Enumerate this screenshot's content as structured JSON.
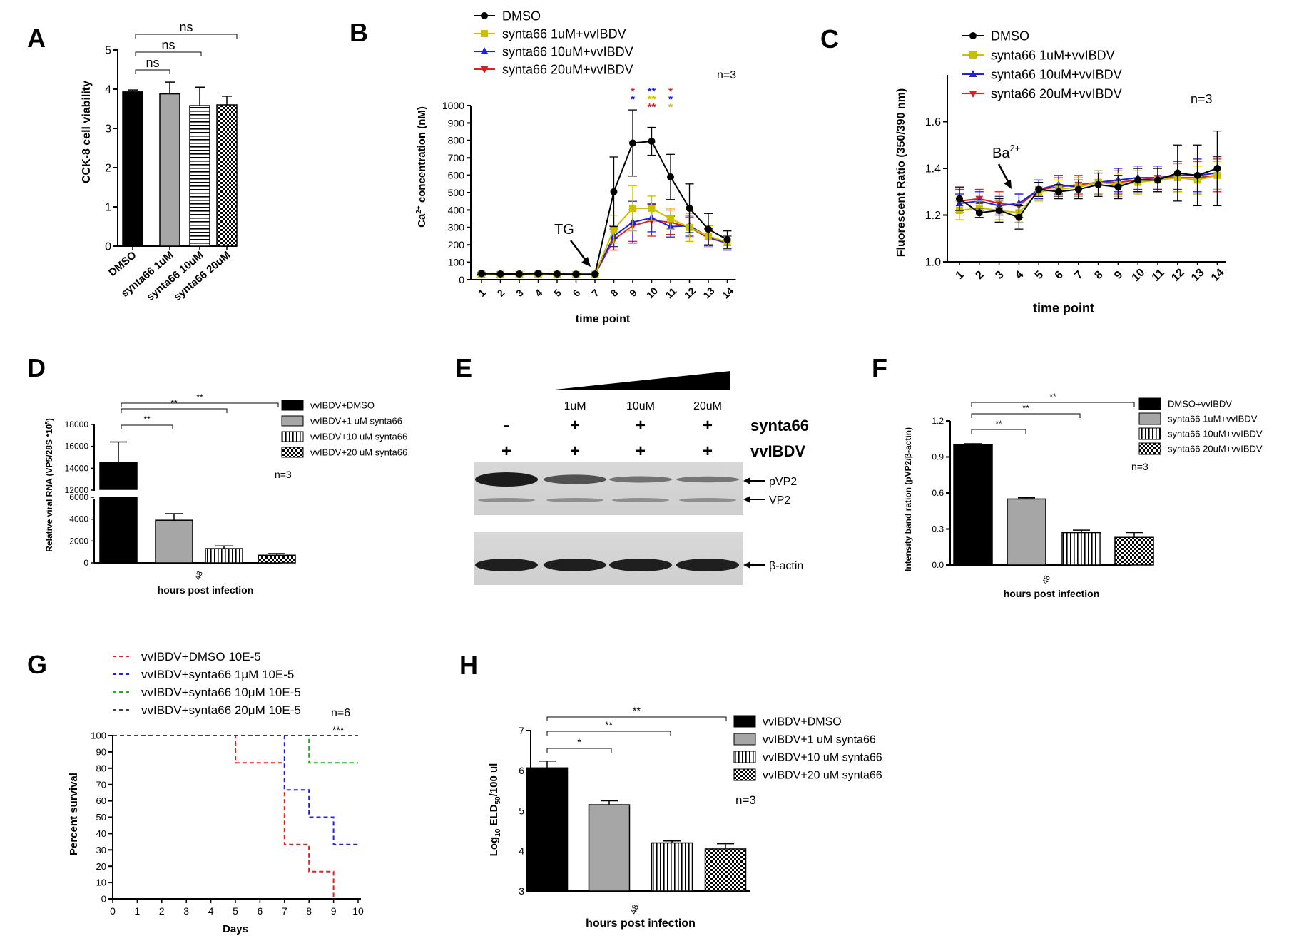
{
  "colors": {
    "black": "#000000",
    "gray": "#a6a6a6",
    "olive": "#c8c000",
    "blue": "#2020e0",
    "red": "#e02020",
    "green": "#20b020",
    "darkgray": "#404040"
  },
  "panels": {
    "A": {
      "letter": "A",
      "type": "bar",
      "ylabel": "CCK-8 cell viability",
      "ylim": [
        0,
        5
      ],
      "yticks": [
        0,
        1,
        2,
        3,
        4,
        5
      ],
      "categories": [
        "DMSO",
        "synta66 1uM",
        "synta66 10uM",
        "synta66 20uM"
      ],
      "values": [
        3.93,
        3.88,
        3.58,
        3.6
      ],
      "errors": [
        0.05,
        0.3,
        0.47,
        0.22
      ],
      "fills": [
        "solid-black",
        "solid-gray",
        "hstripes",
        "checker"
      ],
      "sig": [
        "ns",
        "ns",
        "ns"
      ]
    },
    "B": {
      "letter": "B",
      "type": "line",
      "ylabel_pre": "Ca",
      "ylabel_sup": "2+",
      "ylabel_post": " concentration (nM)",
      "xlabel": "time point",
      "ylim": [
        0,
        1000
      ],
      "yticks": [
        0,
        100,
        200,
        300,
        400,
        500,
        600,
        700,
        800,
        900,
        1000
      ],
      "x": [
        1,
        2,
        3,
        4,
        5,
        6,
        7,
        8,
        9,
        10,
        11,
        12,
        13,
        14
      ],
      "legend": [
        "DMSO",
        "synta66 1uM+vvIBDV",
        "synta66 10uM+vvIBDV",
        "synta66 20uM+vvIBDV"
      ],
      "n_label": "n=3",
      "annotation": "TG",
      "series": [
        {
          "name": "DMSO",
          "color": "black",
          "marker": "circle",
          "values": [
            35,
            33,
            33,
            35,
            33,
            32,
            32,
            505,
            785,
            795,
            590,
            410,
            290,
            230
          ],
          "errors": [
            5,
            5,
            5,
            5,
            5,
            5,
            5,
            200,
            190,
            80,
            130,
            140,
            90,
            50
          ]
        },
        {
          "name": "synta66 1uM+vvIBDV",
          "color": "olive",
          "marker": "square",
          "values": [
            32,
            30,
            30,
            32,
            30,
            30,
            30,
            290,
            410,
            410,
            350,
            300,
            250,
            215
          ],
          "errors": [
            5,
            5,
            5,
            5,
            5,
            5,
            5,
            80,
            130,
            70,
            60,
            80,
            60,
            40
          ]
        },
        {
          "name": "synta66 10uM+vvIBDV",
          "color": "blue",
          "marker": "triangle",
          "values": [
            30,
            30,
            30,
            30,
            30,
            30,
            30,
            250,
            330,
            355,
            305,
            310,
            245,
            210
          ],
          "errors": [
            5,
            5,
            5,
            5,
            5,
            5,
            5,
            60,
            120,
            80,
            60,
            60,
            50,
            40
          ]
        },
        {
          "name": "synta66 20uM+vvIBDV",
          "color": "red",
          "marker": "triangle-down",
          "values": [
            30,
            30,
            30,
            30,
            30,
            30,
            30,
            230,
            310,
            340,
            330,
            300,
            240,
            210
          ],
          "errors": [
            5,
            5,
            5,
            5,
            5,
            5,
            5,
            60,
            90,
            90,
            70,
            60,
            50,
            40
          ]
        }
      ],
      "stars": [
        {
          "x": 9,
          "rows": [
            [
              "*",
              "red"
            ],
            [
              "*",
              "blue"
            ]
          ]
        },
        {
          "x": 10,
          "rows": [
            [
              "**",
              "blue"
            ],
            [
              "**",
              "olive"
            ],
            [
              "**",
              "red"
            ]
          ]
        },
        {
          "x": 11,
          "rows": [
            [
              "*",
              "red"
            ],
            [
              "*",
              "blue"
            ],
            [
              "*",
              "olive"
            ]
          ]
        }
      ]
    },
    "C": {
      "letter": "C",
      "type": "line",
      "ylabel": "Fluorescent Ratio (350/390 nm)",
      "xlabel": "time point",
      "ylim": [
        1.0,
        1.8
      ],
      "yticks": [
        "1.0",
        "1.2",
        "1.4",
        "1.6"
      ],
      "x": [
        1,
        2,
        3,
        4,
        5,
        6,
        7,
        8,
        9,
        10,
        11,
        12,
        13,
        14
      ],
      "legend": [
        "DMSO",
        "synta66 1uM+vvIBDV",
        "synta66 10uM+vvIBDV",
        "synta66 20uM+vvIBDV"
      ],
      "n_label": "n=3",
      "annotation_base": "Ba",
      "annotation_sup": "2+",
      "series": [
        {
          "name": "DMSO",
          "color": "black",
          "marker": "circle",
          "values": [
            1.27,
            1.21,
            1.22,
            1.19,
            1.31,
            1.3,
            1.31,
            1.33,
            1.32,
            1.35,
            1.35,
            1.38,
            1.37,
            1.4
          ],
          "errors": [
            0.05,
            0.02,
            0.05,
            0.05,
            0.03,
            0.03,
            0.04,
            0.05,
            0.05,
            0.05,
            0.05,
            0.12,
            0.13,
            0.16
          ]
        },
        {
          "name": "synta66 1uM+vvIBDV",
          "color": "olive",
          "marker": "square",
          "values": [
            1.22,
            1.23,
            1.22,
            1.21,
            1.3,
            1.31,
            1.32,
            1.34,
            1.33,
            1.34,
            1.35,
            1.36,
            1.35,
            1.37
          ],
          "errors": [
            0.04,
            0.03,
            0.04,
            0.04,
            0.04,
            0.04,
            0.04,
            0.05,
            0.05,
            0.05,
            0.05,
            0.06,
            0.06,
            0.06
          ]
        },
        {
          "name": "synta66 10uM+vvIBDV",
          "color": "blue",
          "marker": "triangle",
          "values": [
            1.25,
            1.26,
            1.24,
            1.25,
            1.31,
            1.33,
            1.32,
            1.34,
            1.35,
            1.36,
            1.36,
            1.37,
            1.37,
            1.38
          ],
          "errors": [
            0.04,
            0.04,
            0.04,
            0.04,
            0.04,
            0.04,
            0.04,
            0.05,
            0.05,
            0.05,
            0.05,
            0.06,
            0.07,
            0.07
          ]
        },
        {
          "name": "synta66 20uM+vvIBDV",
          "color": "red",
          "marker": "triangle-down",
          "values": [
            1.26,
            1.27,
            1.25,
            1.24,
            1.31,
            1.32,
            1.33,
            1.34,
            1.34,
            1.35,
            1.36,
            1.36,
            1.36,
            1.37
          ],
          "errors": [
            0.05,
            0.04,
            0.05,
            0.05,
            0.04,
            0.04,
            0.04,
            0.05,
            0.05,
            0.05,
            0.05,
            0.06,
            0.07,
            0.07
          ]
        }
      ]
    },
    "D": {
      "letter": "D",
      "type": "bar",
      "ylabel": "Relative viral RNA (VP5/28S *10",
      "ylabel_sup": "5",
      "ylabel_post": ")",
      "xlabel": "hours post infection",
      "xtick": "48",
      "lower_ticks": [
        0,
        2000,
        4000,
        6000
      ],
      "upper_ticks": [
        12000,
        14000,
        16000,
        18000
      ],
      "legend": [
        "vvIBDV+DMSO",
        "vvIBDV+1 uM synta66",
        "vvIBDV+10 uM synta66",
        "vvIBDV+20 uM synta66"
      ],
      "n_label": "n=3",
      "values": [
        14500,
        3900,
        1300,
        700
      ],
      "errors": [
        1900,
        600,
        250,
        150
      ],
      "fills": [
        "solid-black",
        "solid-gray",
        "vstripes",
        "checker"
      ],
      "sig": [
        "**",
        "**",
        "**"
      ]
    },
    "E": {
      "letter": "E",
      "type": "western-blot",
      "concentrations": [
        "1uM",
        "10uM",
        "20uM"
      ],
      "synta66_row": [
        "-",
        "+",
        "+",
        "+"
      ],
      "vvibdv_row": [
        "+",
        "+",
        "+",
        "+"
      ],
      "row_labels": [
        "synta66",
        "vvIBDV"
      ],
      "band_labels": [
        "pVP2",
        "VP2",
        "β-actin"
      ],
      "pvp2_intensity": [
        1.0,
        0.55,
        0.27,
        0.23
      ]
    },
    "F": {
      "letter": "F",
      "type": "bar",
      "ylabel": "Intensity band ration (pVP2/β-actin)",
      "xlabel": "hours post infection",
      "xtick": "48",
      "ylim": [
        0,
        1.2
      ],
      "yticks": [
        "0.0",
        "0.3",
        "0.6",
        "0.9",
        "1.2"
      ],
      "legend": [
        "DMSO+vvIBDV",
        "synta66 1uM+vvIBDV",
        "synta66 10uM+vvIBDV",
        "synta66 20uM+vvIBDV"
      ],
      "n_label": "n=3",
      "values": [
        1.0,
        0.55,
        0.27,
        0.23
      ],
      "errors": [
        0.01,
        0.01,
        0.02,
        0.04
      ],
      "fills": [
        "solid-black",
        "solid-gray",
        "vstripes",
        "checker"
      ],
      "sig": [
        "**",
        "**",
        "**"
      ]
    },
    "G": {
      "letter": "G",
      "type": "survival",
      "ylabel": "Percent survival",
      "xlabel": "Days",
      "ylim": [
        0,
        100
      ],
      "yticks": [
        0,
        10,
        20,
        30,
        40,
        50,
        60,
        70,
        80,
        90,
        100
      ],
      "xticks": [
        0,
        1,
        2,
        3,
        4,
        5,
        6,
        7,
        8,
        9,
        10
      ],
      "n_label": "n=6",
      "sig": "***",
      "legend": [
        "vvIBDV+DMSO 10E-5",
        "vvIBDV+synta66 1μM 10E-5",
        "vvIBDV+synta66 10μM 10E-5",
        "vvIBDV+synta66 20μM 10E-5"
      ],
      "series": [
        {
          "name": "vvIBDV+DMSO 10E-5",
          "color": "red",
          "steps": [
            [
              0,
              100
            ],
            [
              5,
              83.3
            ],
            [
              7,
              33.3
            ],
            [
              8,
              16.7
            ],
            [
              9,
              0
            ]
          ]
        },
        {
          "name": "vvIBDV+synta66 1μM 10E-5",
          "color": "blue",
          "steps": [
            [
              0,
              100
            ],
            [
              7,
              66.7
            ],
            [
              8,
              50
            ],
            [
              9,
              33.3
            ],
            [
              10,
              33.3
            ]
          ]
        },
        {
          "name": "vvIBDV+synta66 10μM 10E-5",
          "color": "green",
          "steps": [
            [
              0,
              100
            ],
            [
              8,
              83.3
            ],
            [
              10,
              83.3
            ]
          ]
        },
        {
          "name": "vvIBDV+synta66 20μM 10E-5",
          "color": "darkgray",
          "steps": [
            [
              0,
              100
            ],
            [
              10,
              100
            ]
          ]
        }
      ]
    },
    "H": {
      "letter": "H",
      "type": "bar",
      "ylabel_pre": "Log",
      "ylabel_sub": "10",
      "ylabel_mid": " ELD",
      "ylabel_sub2": "50",
      "ylabel_post": "/100 ul",
      "xlabel": "hours post infection",
      "xtick": "48",
      "ylim": [
        3,
        7
      ],
      "yticks": [
        3,
        4,
        5,
        6,
        7
      ],
      "legend": [
        "vvIBDV+DMSO",
        "vvIBDV+1 uM synta66",
        "vvIBDV+10 uM synta66",
        "vvIBDV+20 uM synta66"
      ],
      "n_label": "n=3",
      "values": [
        6.07,
        5.15,
        4.2,
        4.05
      ],
      "errors": [
        0.17,
        0.1,
        0.05,
        0.13
      ],
      "fills": [
        "solid-black",
        "solid-gray",
        "vstripes",
        "checker"
      ],
      "sig": [
        "*",
        "**",
        "**"
      ]
    }
  }
}
